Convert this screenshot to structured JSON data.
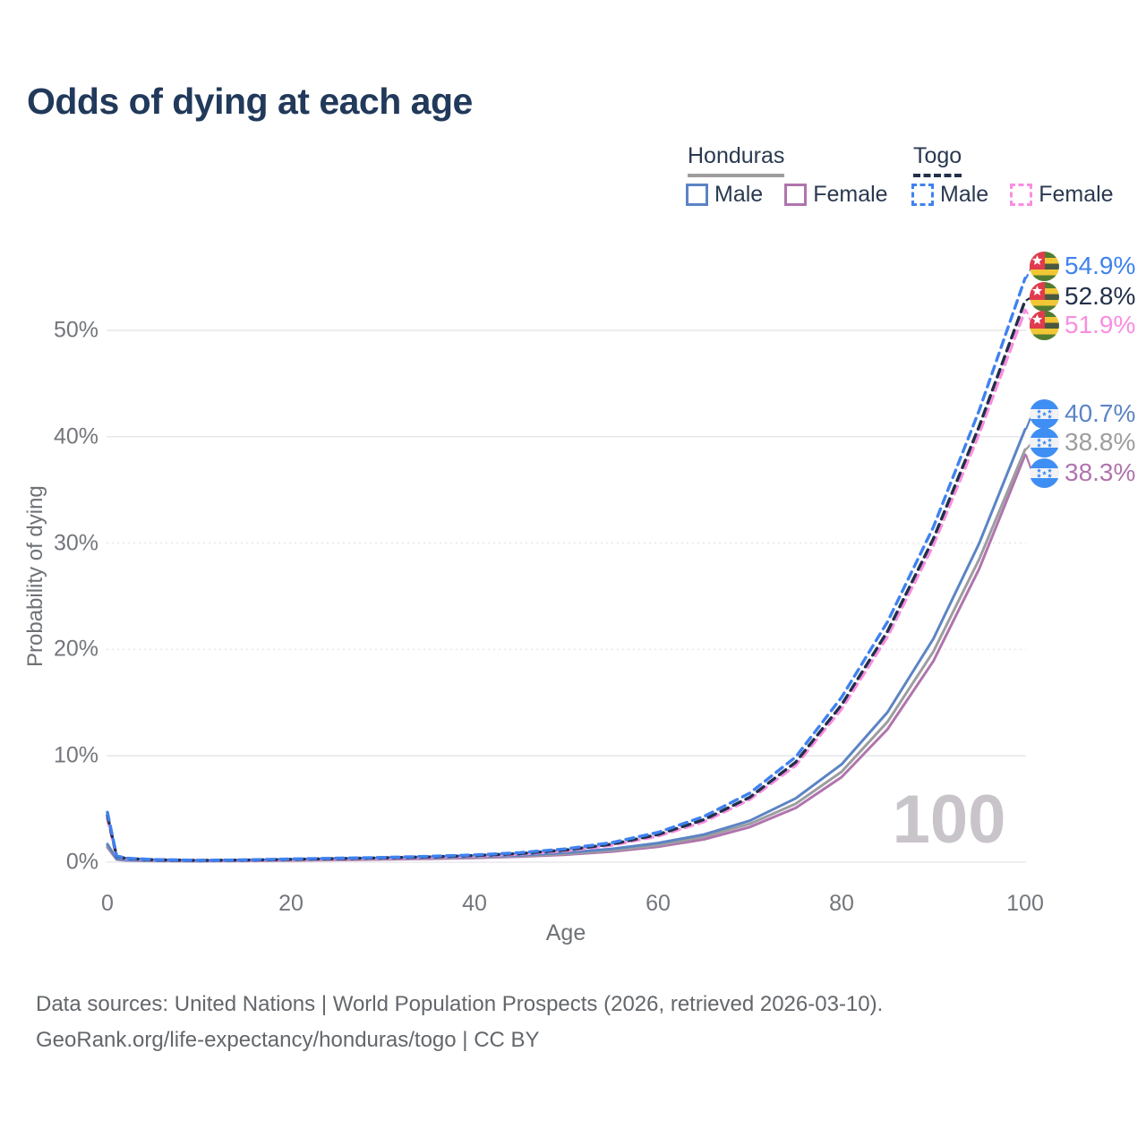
{
  "title": "Odds of dying at each age",
  "legend": {
    "honduras": {
      "label": "Honduras",
      "male": "Male",
      "female": "Female"
    },
    "togo": {
      "label": "Togo",
      "male": "Male",
      "female": "Female"
    }
  },
  "colors": {
    "title_text": "#21395a",
    "legend_text": "#2a3950",
    "axis_text": "#73767c",
    "gridline": "#e8e8ec",
    "honduras_male": "#5b84c4",
    "honduras_both": "#9d9da0",
    "honduras_female": "#b074ad",
    "togo_male": "#3f82f0",
    "togo_both": "#22304a",
    "togo_female": "#f98ee0",
    "watermark_text": "#c8c4ca"
  },
  "chart_data": {
    "type": "line",
    "title": "Odds of dying at each age",
    "xlabel": "Age",
    "ylabel": "Probability of dying",
    "grid": true,
    "legend_position": "top-right",
    "xlim": [
      0,
      100
    ],
    "ylim": [
      0,
      55
    ],
    "x_ticks": [
      0,
      20,
      40,
      60,
      80,
      100
    ],
    "y_ticks": {
      "values": [
        0,
        10,
        20,
        30,
        40,
        50
      ],
      "labels": [
        "0%",
        "10%",
        "20%",
        "30%",
        "40%",
        "50%"
      ]
    },
    "watermark": "100",
    "ages": [
      0,
      1,
      2,
      5,
      10,
      15,
      20,
      25,
      30,
      35,
      40,
      45,
      50,
      55,
      60,
      65,
      70,
      75,
      80,
      85,
      90,
      95,
      100
    ],
    "series": [
      {
        "name": "Togo Male",
        "country": "Togo",
        "sex": "Male",
        "style": "dashed",
        "color": "#3f82f0",
        "end_label": "54.9%",
        "end_value": 54.9,
        "values": [
          4.7,
          0.6,
          0.38,
          0.25,
          0.18,
          0.22,
          0.3,
          0.38,
          0.45,
          0.55,
          0.68,
          0.9,
          1.25,
          1.85,
          2.8,
          4.3,
          6.5,
          9.9,
          15.5,
          22.6,
          31.5,
          42.5,
          54.9
        ]
      },
      {
        "name": "Togo Both sexes",
        "country": "Togo",
        "sex": "Both",
        "style": "dashed",
        "color": "#22304a",
        "end_label": "52.8%",
        "end_value": 52.8,
        "values": [
          4.4,
          0.56,
          0.35,
          0.23,
          0.17,
          0.2,
          0.27,
          0.34,
          0.41,
          0.5,
          0.62,
          0.82,
          1.15,
          1.7,
          2.6,
          4.0,
          6.1,
          9.4,
          14.8,
          21.7,
          30.4,
          41.0,
          52.8
        ]
      },
      {
        "name": "Togo Female",
        "country": "Togo",
        "sex": "Female",
        "style": "dashed",
        "color": "#f98ee0",
        "end_label": "51.9%",
        "end_value": 51.9,
        "values": [
          4.1,
          0.52,
          0.33,
          0.21,
          0.16,
          0.18,
          0.24,
          0.3,
          0.37,
          0.46,
          0.57,
          0.76,
          1.07,
          1.6,
          2.45,
          3.8,
          5.9,
          9.1,
          14.4,
          21.2,
          29.8,
          40.3,
          51.9
        ]
      },
      {
        "name": "Honduras Male",
        "country": "Honduras",
        "sex": "Male",
        "style": "solid",
        "color": "#5b84c4",
        "end_label": "40.7%",
        "end_value": 40.7,
        "values": [
          1.7,
          0.3,
          0.2,
          0.14,
          0.12,
          0.16,
          0.24,
          0.3,
          0.36,
          0.43,
          0.52,
          0.66,
          0.9,
          1.25,
          1.8,
          2.6,
          3.9,
          6.0,
          9.2,
          14.1,
          21.0,
          30.0,
          40.7
        ]
      },
      {
        "name": "Honduras Both sexes",
        "country": "Honduras",
        "sex": "Both",
        "style": "solid",
        "color": "#9d9da0",
        "end_label": "38.8%",
        "end_value": 38.8,
        "values": [
          1.55,
          0.27,
          0.18,
          0.13,
          0.11,
          0.14,
          0.2,
          0.25,
          0.31,
          0.38,
          0.46,
          0.59,
          0.8,
          1.12,
          1.6,
          2.4,
          3.6,
          5.5,
          8.5,
          13.2,
          19.8,
          28.5,
          38.8
        ]
      },
      {
        "name": "Honduras Female",
        "country": "Honduras",
        "sex": "Female",
        "style": "solid",
        "color": "#b074ad",
        "end_label": "38.3%",
        "end_value": 38.3,
        "values": [
          1.4,
          0.25,
          0.17,
          0.12,
          0.1,
          0.12,
          0.16,
          0.21,
          0.26,
          0.32,
          0.4,
          0.52,
          0.71,
          1.0,
          1.45,
          2.15,
          3.3,
          5.1,
          8.0,
          12.5,
          18.9,
          27.6,
          38.3
        ]
      }
    ]
  },
  "footer": {
    "line1": "Data sources: United Nations | World Population Prospects (2026, retrieved 2026-03-10).",
    "line2": "GeoRank.org/life-expectancy/honduras/togo | CC BY"
  }
}
